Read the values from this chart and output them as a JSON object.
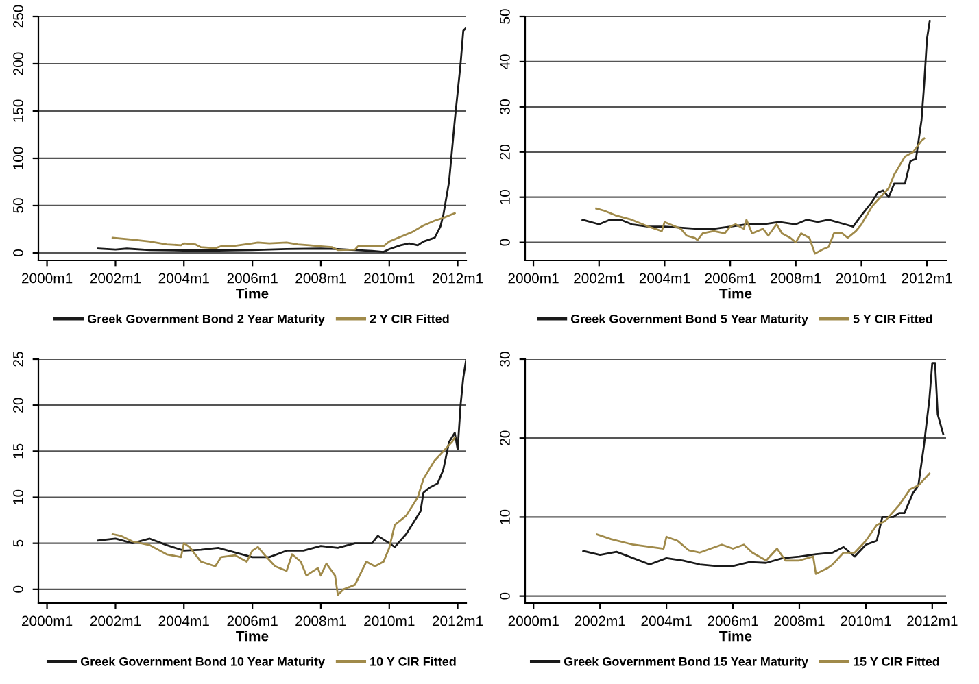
{
  "chart_data": [
    {
      "type": "line",
      "xlabel": "Time",
      "xlim": [
        "1999-10",
        "2012-04"
      ],
      "ylim": [
        -8,
        250
      ],
      "yticks": [
        0,
        50,
        100,
        150,
        200,
        250
      ],
      "xticks": [
        {
          "value": "2000-01",
          "label": "2000m1"
        },
        {
          "value": "2002-01",
          "label": "2002m1"
        },
        {
          "value": "2004-01",
          "label": "2004m1"
        },
        {
          "value": "2006-01",
          "label": "2006m1"
        },
        {
          "value": "2008-01",
          "label": "2008m1"
        },
        {
          "value": "2010-01",
          "label": "2010m1"
        },
        {
          "value": "2012-01",
          "label": "2012m1"
        }
      ],
      "grid": "y",
      "legend": "bottom",
      "series": [
        {
          "name": "Greek Government Bond 2 Year Maturity",
          "color": "#1a1a1a",
          "x": [
            "2001-07",
            "2002-01",
            "2002-05",
            "2003-01",
            "2004-01",
            "2005-01",
            "2006-01",
            "2007-01",
            "2008-01",
            "2008-07",
            "2009-01",
            "2009-07",
            "2009-11",
            "2010-01",
            "2010-05",
            "2010-08",
            "2010-11",
            "2011-01",
            "2011-05",
            "2011-07",
            "2011-08",
            "2011-10",
            "2011-12",
            "2012-02",
            "2012-03",
            "2012-04"
          ],
          "values": [
            4.5,
            3.5,
            4.5,
            3,
            2.5,
            2.5,
            3,
            4,
            4.5,
            4,
            3,
            2,
            1,
            4,
            8,
            10,
            8,
            12,
            16,
            28,
            40,
            75,
            140,
            200,
            235,
            238
          ]
        },
        {
          "name": "2 Y CIR Fitted",
          "color": "#a08a4a",
          "x": [
            "2001-12",
            "2002-07",
            "2003-01",
            "2003-07",
            "2003-12",
            "2004-01",
            "2004-05",
            "2004-07",
            "2004-12",
            "2005-02",
            "2005-07",
            "2006-01",
            "2006-03",
            "2006-07",
            "2007-01",
            "2007-05",
            "2007-09",
            "2008-01",
            "2008-05",
            "2008-07",
            "2009-01",
            "2009-02",
            "2009-07",
            "2009-11",
            "2010-01",
            "2010-05",
            "2010-09",
            "2011-01",
            "2011-05",
            "2011-08",
            "2011-12"
          ],
          "values": [
            16,
            14,
            12,
            9,
            8,
            10,
            9,
            6,
            5,
            7,
            7.5,
            10,
            11,
            10,
            11,
            9,
            8,
            7,
            6,
            3,
            3.5,
            7,
            7,
            7,
            12,
            17,
            22,
            29,
            34,
            37,
            42
          ]
        }
      ]
    },
    {
      "type": "line",
      "xlabel": "Time",
      "xlim": [
        "1999-10",
        "2012-08"
      ],
      "ylim": [
        -4,
        50
      ],
      "yticks": [
        0,
        10,
        20,
        30,
        40,
        50
      ],
      "xticks": [
        {
          "value": "2000-01",
          "label": "2000m1"
        },
        {
          "value": "2002-01",
          "label": "2002m1"
        },
        {
          "value": "2004-01",
          "label": "2004m1"
        },
        {
          "value": "2006-01",
          "label": "2006m1"
        },
        {
          "value": "2008-01",
          "label": "2008m1"
        },
        {
          "value": "2010-01",
          "label": "2010m1"
        },
        {
          "value": "2012-01",
          "label": "2012m1"
        }
      ],
      "grid": "y",
      "legend": "bottom",
      "series": [
        {
          "name": "Greek Government Bond 5 Year Maturity",
          "color": "#1a1a1a",
          "x": [
            "2001-07",
            "2002-01",
            "2002-05",
            "2002-09",
            "2003-01",
            "2003-07",
            "2004-01",
            "2005-01",
            "2005-07",
            "2006-01",
            "2006-07",
            "2007-01",
            "2007-07",
            "2008-01",
            "2008-05",
            "2008-09",
            "2009-01",
            "2009-07",
            "2009-10",
            "2010-01",
            "2010-05",
            "2010-07",
            "2010-09",
            "2010-11",
            "2011-01",
            "2011-05",
            "2011-07",
            "2011-09",
            "2011-11",
            "2011-12",
            "2012-01",
            "2012-02"
          ],
          "values": [
            5,
            4,
            5,
            5,
            4,
            3.5,
            3.5,
            3,
            3,
            3.5,
            4,
            4,
            4.5,
            4,
            5,
            4.5,
            5,
            4,
            3.5,
            6,
            9,
            11,
            11.5,
            10,
            13,
            13,
            18,
            18.5,
            27,
            35,
            45,
            49
          ]
        },
        {
          "name": "5 Y CIR Fitted",
          "color": "#a08a4a",
          "x": [
            "2001-12",
            "2002-03",
            "2002-07",
            "2003-01",
            "2003-07",
            "2003-12",
            "2004-01",
            "2004-03",
            "2004-07",
            "2004-09",
            "2004-12",
            "2005-01",
            "2005-03",
            "2005-07",
            "2005-11",
            "2006-01",
            "2006-03",
            "2006-06",
            "2006-07",
            "2006-09",
            "2007-01",
            "2007-03",
            "2007-06",
            "2007-08",
            "2007-11",
            "2008-01",
            "2008-03",
            "2008-06",
            "2008-08",
            "2008-11",
            "2009-01",
            "2009-03",
            "2009-06",
            "2009-08",
            "2009-11",
            "2010-01",
            "2010-05",
            "2010-08",
            "2010-11",
            "2011-01",
            "2011-05",
            "2011-08",
            "2011-11",
            "2011-12"
          ],
          "values": [
            7.5,
            7,
            6,
            5,
            3.5,
            2.5,
            4.5,
            4,
            3,
            1.5,
            1,
            0.5,
            2,
            2.5,
            2,
            3.5,
            4,
            3,
            5,
            2,
            3,
            1.5,
            4,
            2,
            1,
            0,
            2,
            1,
            -2.5,
            -1.5,
            -1,
            2,
            2,
            1,
            2.5,
            4,
            8,
            10,
            12,
            15,
            19,
            20,
            22.5,
            23
          ]
        }
      ]
    },
    {
      "type": "line",
      "xlabel": "Time",
      "xlim": [
        "1999-10",
        "2012-04"
      ],
      "ylim": [
        -1.5,
        25
      ],
      "yticks": [
        0,
        5,
        10,
        15,
        20,
        25
      ],
      "xticks": [
        {
          "value": "2000-01",
          "label": "2000m1"
        },
        {
          "value": "2002-01",
          "label": "2002m1"
        },
        {
          "value": "2004-01",
          "label": "2004m1"
        },
        {
          "value": "2006-01",
          "label": "2006m1"
        },
        {
          "value": "2008-01",
          "label": "2008m1"
        },
        {
          "value": "2010-01",
          "label": "2010m1"
        },
        {
          "value": "2012-01",
          "label": "2012m1"
        }
      ],
      "grid": "y",
      "legend": "bottom",
      "series": [
        {
          "name": "Greek Government Bond 10 Year Maturity",
          "color": "#1a1a1a",
          "x": [
            "2001-07",
            "2002-01",
            "2002-07",
            "2003-01",
            "2003-07",
            "2004-01",
            "2004-07",
            "2005-01",
            "2005-07",
            "2006-01",
            "2006-07",
            "2007-01",
            "2007-07",
            "2008-01",
            "2008-07",
            "2009-01",
            "2009-07",
            "2009-09",
            "2010-01",
            "2010-03",
            "2010-07",
            "2010-09",
            "2010-12",
            "2011-01",
            "2011-03",
            "2011-06",
            "2011-08",
            "2011-10",
            "2011-12",
            "2012-01",
            "2012-02",
            "2012-03",
            "2012-04"
          ],
          "values": [
            5.3,
            5.5,
            5,
            5.5,
            4.8,
            4.2,
            4.3,
            4.5,
            4,
            3.5,
            3.5,
            4.2,
            4.2,
            4.7,
            4.5,
            5,
            5,
            5.8,
            5,
            4.6,
            6,
            7,
            8.5,
            10.5,
            11,
            11.5,
            13,
            16,
            17,
            15.2,
            20,
            23,
            25
          ]
        },
        {
          "name": "10 Y CIR Fitted",
          "color": "#a08a4a",
          "x": [
            "2001-12",
            "2002-03",
            "2002-07",
            "2003-01",
            "2003-07",
            "2003-12",
            "2004-01",
            "2004-03",
            "2004-07",
            "2004-12",
            "2005-02",
            "2005-07",
            "2005-11",
            "2006-01",
            "2006-03",
            "2006-06",
            "2006-09",
            "2007-01",
            "2007-03",
            "2007-06",
            "2007-08",
            "2007-12",
            "2008-01",
            "2008-03",
            "2008-06",
            "2008-07",
            "2008-09",
            "2009-01",
            "2009-05",
            "2009-08",
            "2009-11",
            "2010-01",
            "2010-03",
            "2010-07",
            "2010-11",
            "2011-01",
            "2011-05",
            "2011-08",
            "2011-11",
            "2011-12"
          ],
          "values": [
            6,
            5.8,
            5.2,
            4.8,
            3.8,
            3.5,
            5,
            4.6,
            3,
            2.5,
            3.5,
            3.7,
            3,
            4.2,
            4.6,
            3.5,
            2.5,
            2,
            3.8,
            3,
            1.5,
            2.3,
            1.5,
            2.8,
            1.5,
            -0.6,
            0,
            0.5,
            3,
            2.5,
            3,
            4.5,
            7,
            8,
            10,
            12,
            14,
            15,
            16,
            16.5
          ]
        }
      ]
    },
    {
      "type": "line",
      "xlabel": "Time",
      "xlim": [
        "1999-10",
        "2012-06"
      ],
      "ylim": [
        -0.9,
        30
      ],
      "yticks": [
        0,
        10,
        20,
        30
      ],
      "xticks": [
        {
          "value": "2000-01",
          "label": "2000m1"
        },
        {
          "value": "2002-01",
          "label": "2002m1"
        },
        {
          "value": "2004-01",
          "label": "2004m1"
        },
        {
          "value": "2006-01",
          "label": "2006m1"
        },
        {
          "value": "2008-01",
          "label": "2008m1"
        },
        {
          "value": "2010-01",
          "label": "2010m1"
        },
        {
          "value": "2012-01",
          "label": "2012m1"
        }
      ],
      "grid": "y",
      "legend": "bottom",
      "series": [
        {
          "name": "Greek Government Bond 15 Year Maturity",
          "color": "#1a1a1a",
          "x": [
            "2001-07",
            "2002-01",
            "2002-07",
            "2003-01",
            "2003-07",
            "2004-01",
            "2004-07",
            "2005-01",
            "2005-07",
            "2006-01",
            "2006-07",
            "2007-01",
            "2007-07",
            "2008-01",
            "2008-07",
            "2009-01",
            "2009-05",
            "2009-09",
            "2010-01",
            "2010-05",
            "2010-07",
            "2010-11",
            "2011-01",
            "2011-03",
            "2011-06",
            "2011-08",
            "2011-10",
            "2011-12",
            "2012-01",
            "2012-02",
            "2012-03",
            "2012-05"
          ],
          "values": [
            5.7,
            5.2,
            5.6,
            4.8,
            4,
            4.8,
            4.5,
            4,
            3.8,
            3.8,
            4.3,
            4.2,
            4.8,
            5,
            5.3,
            5.5,
            6.2,
            5,
            6.5,
            7,
            10,
            10,
            10.5,
            10.5,
            13,
            14,
            19,
            25,
            29.5,
            29.5,
            23,
            20.5
          ]
        },
        {
          "name": "15 Y CIR Fitted",
          "color": "#a08a4a",
          "x": [
            "2001-12",
            "2002-05",
            "2003-01",
            "2003-12",
            "2004-01",
            "2004-05",
            "2004-09",
            "2005-01",
            "2005-05",
            "2005-09",
            "2006-01",
            "2006-05",
            "2006-08",
            "2007-01",
            "2007-05",
            "2007-08",
            "2008-01",
            "2008-06",
            "2008-07",
            "2008-11",
            "2009-01",
            "2009-05",
            "2009-09",
            "2010-01",
            "2010-05",
            "2010-08",
            "2011-01",
            "2011-05",
            "2011-08",
            "2011-12"
          ],
          "values": [
            7.8,
            7.2,
            6.5,
            6,
            7.5,
            7,
            5.8,
            5.5,
            6,
            6.5,
            6,
            6.5,
            5.5,
            4.5,
            6,
            4.5,
            4.5,
            5,
            2.8,
            3.5,
            4,
            5.5,
            5.5,
            7,
            9,
            9.5,
            11.5,
            13.5,
            14,
            15.5
          ]
        }
      ]
    }
  ]
}
